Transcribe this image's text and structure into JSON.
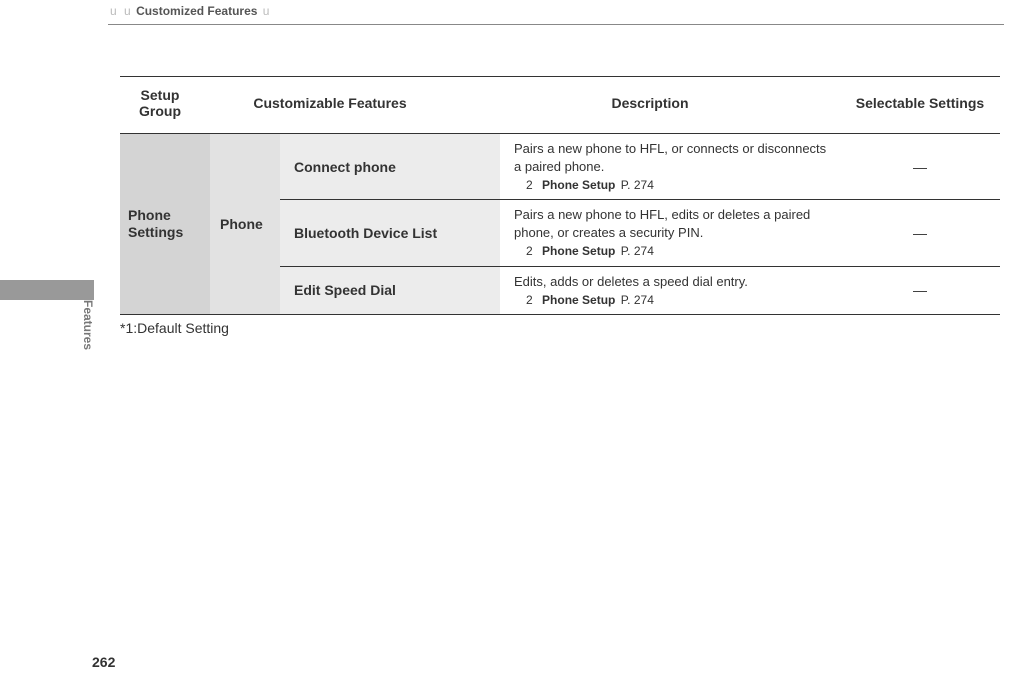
{
  "breadcrumb": {
    "prefix1": "u",
    "prefix2": "u",
    "title": "Customized Features",
    "suffix": "u"
  },
  "sideTab": "Features",
  "pageNumber": "262",
  "footnote": "*1:Default Setting",
  "tableHeader": {
    "setupGroup": "Setup Group",
    "features": "Customizable Features",
    "description": "Description",
    "selectable": "Selectable Settings"
  },
  "setupGroup": "Phone Settings",
  "subGroup": "Phone",
  "reference": {
    "symbol": "2",
    "title": "Phone Setup",
    "page": "P. 274"
  },
  "rows": [
    {
      "feature": "Connect phone",
      "desc": "Pairs a new phone to HFL, or connects or disconnects a paired phone.",
      "sel": "—"
    },
    {
      "feature": "Bluetooth Device List",
      "desc": "Pairs a new phone to HFL, edits or deletes a paired phone, or creates a security PIN.",
      "sel": "—"
    },
    {
      "feature": "Edit Speed Dial",
      "desc": "Edits, adds or deletes a speed dial entry.",
      "sel": "—"
    }
  ]
}
